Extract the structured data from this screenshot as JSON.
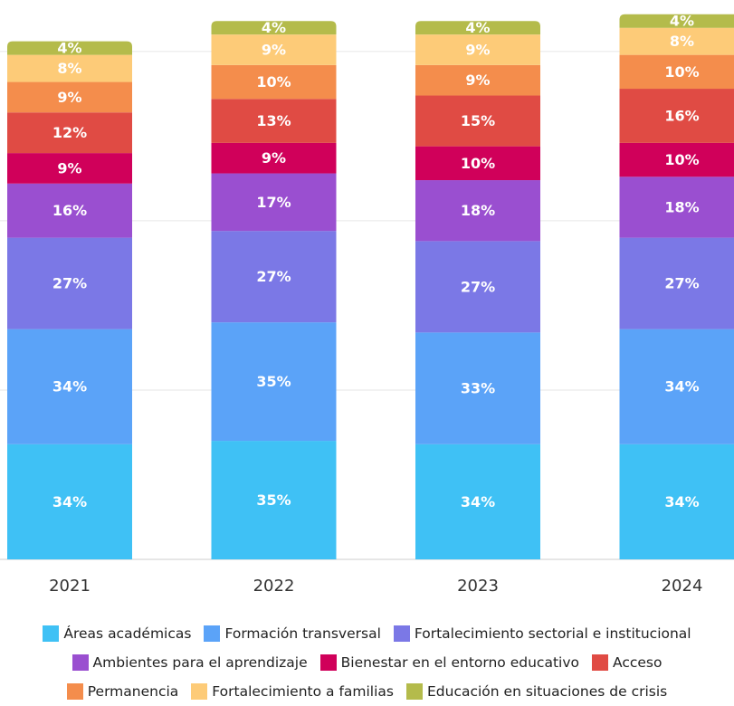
{
  "chart_data": {
    "type": "stacked_bar",
    "categories": [
      "2021",
      "2022",
      "2023",
      "2024"
    ],
    "ylim": [
      0,
      162
    ],
    "yticks": [
      0,
      50,
      100,
      150
    ],
    "grid": true,
    "series": [
      {
        "name": "Áreas académicas",
        "color": "#3fc1f5",
        "values": [
          34,
          35,
          34,
          34
        ],
        "value_labels": [
          "34%",
          "35%",
          "34%",
          "34%"
        ]
      },
      {
        "name": "Formación transversal",
        "color": "#5ba3f8",
        "values": [
          34,
          35,
          33,
          34
        ],
        "value_labels": [
          "34%",
          "35%",
          "33%",
          "34%"
        ]
      },
      {
        "name": "Fortalecimiento sectorial e institucional",
        "color": "#7b78e6",
        "values": [
          27,
          27,
          27,
          27
        ],
        "value_labels": [
          "27%",
          "27%",
          "27%",
          "27%"
        ]
      },
      {
        "name": "Ambientes para el aprendizaje",
        "color": "#9a4fd0",
        "values": [
          16,
          17,
          18,
          18
        ],
        "value_labels": [
          "16%",
          "17%",
          "18%",
          "18%"
        ]
      },
      {
        "name": "Bienestar en el entorno educativo",
        "color": "#d0005a",
        "values": [
          9,
          9,
          10,
          10
        ],
        "value_labels": [
          "9%",
          "9%",
          "10%",
          "10%"
        ]
      },
      {
        "name": "Acceso",
        "color": "#e04b44",
        "values": [
          12,
          13,
          15,
          16
        ],
        "value_labels": [
          "12%",
          "13%",
          "15%",
          "16%"
        ]
      },
      {
        "name": "Permanencia",
        "color": "#f48d4c",
        "values": [
          9,
          10,
          9,
          10
        ],
        "value_labels": [
          "9%",
          "10%",
          "9%",
          "10%"
        ]
      },
      {
        "name": "Fortalecimiento a familias",
        "color": "#fdcb78",
        "values": [
          8,
          9,
          9,
          8
        ],
        "value_labels": [
          "8%",
          "9%",
          "9%",
          "8%"
        ]
      },
      {
        "name": "Educación en situaciones de crisis",
        "color": "#b4bb4b",
        "values": [
          4,
          4,
          4,
          4
        ],
        "value_labels": [
          "4%",
          "4%",
          "4%",
          "4%"
        ]
      }
    ]
  }
}
